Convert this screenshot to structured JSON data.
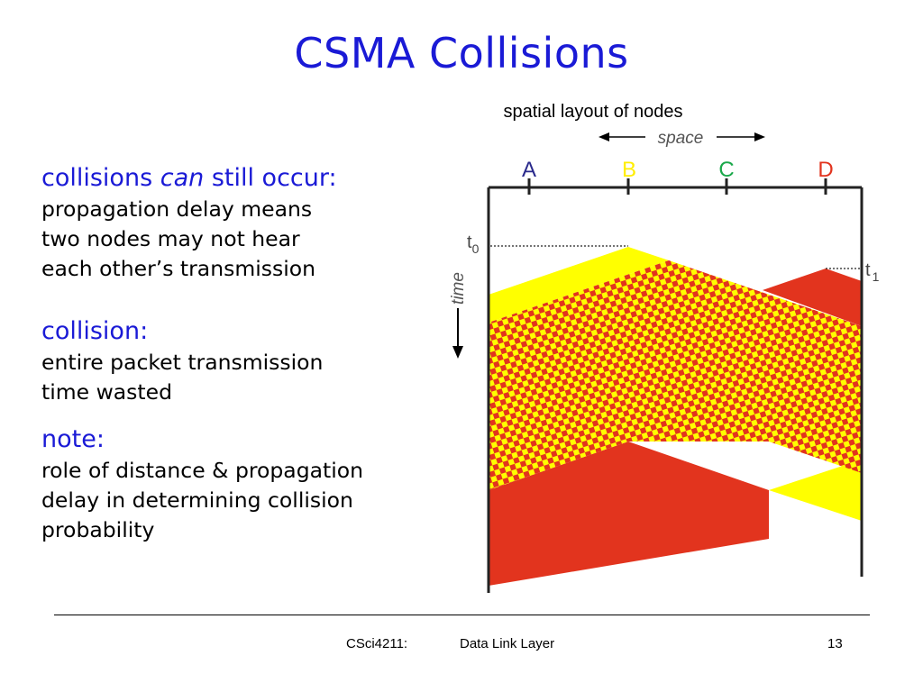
{
  "slide": {
    "title": "CSMA Collisions",
    "sections": [
      {
        "heading_parts": [
          "collisions ",
          "can",
          " still occur:"
        ],
        "lines": [
          "propagation delay means",
          "two nodes may not hear",
          "each other’s transmission"
        ]
      },
      {
        "heading": "collision:",
        "lines": [
          "entire packet transmission",
          "time wasted"
        ]
      },
      {
        "heading": "note:",
        "lines": [
          "role of distance & propagation",
          "delay in determining collision",
          "probability"
        ]
      }
    ]
  },
  "diagram": {
    "caption": "spatial layout of nodes",
    "space_label": "space",
    "time_label": "time",
    "t0": {
      "base": "t",
      "sub": "0"
    },
    "t1": {
      "base": "t",
      "sub": "1"
    },
    "nodes": [
      {
        "label": "A",
        "color": "#2a2a8c"
      },
      {
        "label": "B",
        "color": "#ffee00"
      },
      {
        "label": "C",
        "color": "#1aa84a"
      },
      {
        "label": "D",
        "color": "#e2341e"
      }
    ],
    "transmission_colors": {
      "node_b": "#ffff00",
      "node_d": "#e2341e",
      "overlap_check": [
        "#ffff00",
        "#e2341e"
      ]
    }
  },
  "footer": {
    "course": "CSci4211:",
    "topic": "Data Link Layer",
    "page": "13"
  }
}
